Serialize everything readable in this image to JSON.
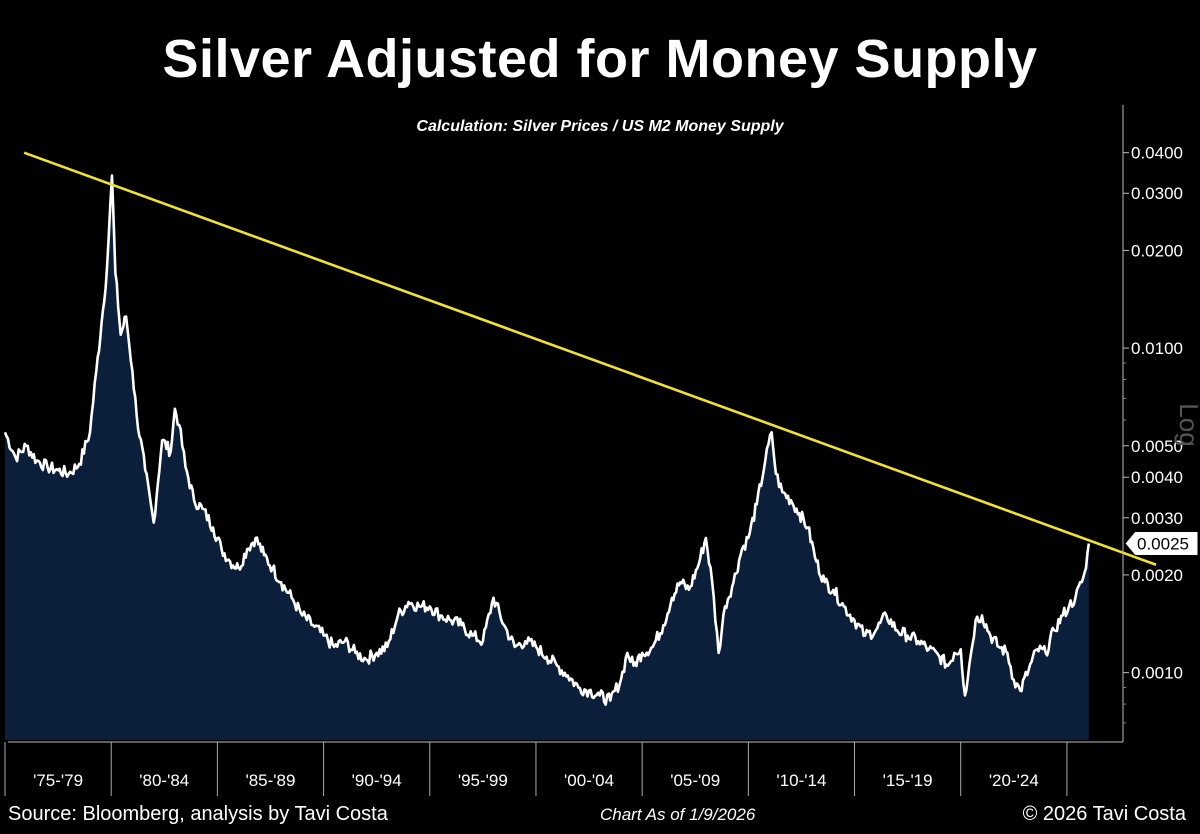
{
  "header": {
    "title": "Silver Adjusted for Money Supply",
    "subtitle": "Calculation: Silver Prices / US M2 Money Supply"
  },
  "footer": {
    "source": "Source: Bloomberg, analysis by Tavi Costa",
    "as_of": "Chart As of 1/9/2026",
    "copyright": "© 2026 Tavi Costa"
  },
  "colors": {
    "background": "#000000",
    "area_fill": "#0b1e3a",
    "series_line": "#ffffff",
    "trendline": "#f2e22a"
  },
  "chart_data": {
    "type": "area",
    "title": "Silver Adjusted for Money Supply",
    "subtitle": "Calculation: Silver Prices / US M2 Money Supply",
    "scale": "log",
    "scale_label": "Log",
    "xlabel": "",
    "ylabel": "",
    "xlim": [
      1975.0,
      2027.5
    ],
    "ylim": [
      0.00062,
      0.046
    ],
    "y_ticks": [
      0.001,
      0.002,
      0.003,
      0.004,
      0.005,
      0.01,
      0.02,
      0.03,
      0.04
    ],
    "y_tick_labels": [
      "0.0010",
      "0.0020",
      "0.0030",
      "0.0040",
      "0.0050",
      "0.0100",
      "0.0200",
      "0.0300",
      "0.0400"
    ],
    "x_tick_labels": [
      "'75-'79",
      "'80-'84",
      "'85-'89",
      "'90-'94",
      "'95-'99",
      "'00-'04",
      "'05-'09",
      "'10-'14",
      "'15-'19",
      "'20-'24"
    ],
    "x_period_starts": [
      1975,
      1980,
      1985,
      1990,
      1995,
      2000,
      2005,
      2010,
      2015,
      2020,
      2025
    ],
    "current_value": 0.0025,
    "current_value_label": "0.0025",
    "series": [
      {
        "name": "Silver / US M2",
        "x": [
          1975.0,
          1975.5,
          1976.0,
          1976.5,
          1977.0,
          1977.5,
          1978.0,
          1978.5,
          1979.0,
          1979.3,
          1979.55,
          1979.8,
          1980.04,
          1980.2,
          1980.45,
          1980.7,
          1981.0,
          1981.2,
          1981.6,
          1982.0,
          1982.4,
          1982.8,
          1983.0,
          1983.2,
          1983.5,
          1983.9,
          1984.3,
          1984.8,
          1985.2,
          1985.6,
          1986.0,
          1986.4,
          1986.8,
          1987.2,
          1987.6,
          1988.0,
          1988.5,
          1989.0,
          1989.5,
          1990.0,
          1990.5,
          1991.0,
          1991.5,
          1992.0,
          1992.5,
          1993.0,
          1993.5,
          1994.0,
          1994.5,
          1995.0,
          1995.5,
          1996.0,
          1996.5,
          1997.0,
          1997.5,
          1998.0,
          1998.5,
          1999.0,
          1999.5,
          2000.0,
          2000.5,
          2001.0,
          2001.5,
          2002.0,
          2002.5,
          2003.0,
          2003.5,
          2004.0,
          2004.3,
          2004.6,
          2005.0,
          2005.5,
          2006.0,
          2006.4,
          2006.8,
          2007.2,
          2007.6,
          2008.0,
          2008.3,
          2008.6,
          2008.9,
          2009.3,
          2009.7,
          2010.0,
          2010.4,
          2010.8,
          2011.1,
          2011.3,
          2011.6,
          2012.0,
          2012.4,
          2012.8,
          2013.2,
          2013.6,
          2014.0,
          2014.5,
          2015.0,
          2015.5,
          2016.0,
          2016.5,
          2017.0,
          2017.5,
          2018.0,
          2018.5,
          2019.0,
          2019.4,
          2019.7,
          2020.0,
          2020.2,
          2020.4,
          2020.7,
          2021.0,
          2021.4,
          2021.8,
          2022.2,
          2022.5,
          2022.8,
          2023.2,
          2023.6,
          2024.0,
          2024.4,
          2024.8,
          2025.1,
          2025.4,
          2025.7,
          2025.9,
          2026.03
        ],
        "values": [
          0.0055,
          0.0046,
          0.005,
          0.0045,
          0.0043,
          0.0042,
          0.0041,
          0.0044,
          0.0055,
          0.0085,
          0.012,
          0.0175,
          0.034,
          0.017,
          0.011,
          0.0125,
          0.0085,
          0.0062,
          0.0042,
          0.0029,
          0.0052,
          0.0048,
          0.0065,
          0.0058,
          0.0043,
          0.0034,
          0.0032,
          0.0028,
          0.0024,
          0.0022,
          0.0021,
          0.0024,
          0.0026,
          0.0023,
          0.0021,
          0.0019,
          0.0017,
          0.0015,
          0.0014,
          0.0013,
          0.0012,
          0.00125,
          0.00115,
          0.0011,
          0.00115,
          0.0012,
          0.0015,
          0.00165,
          0.0016,
          0.0016,
          0.0015,
          0.00145,
          0.0014,
          0.0013,
          0.00125,
          0.0017,
          0.0014,
          0.0012,
          0.00125,
          0.0012,
          0.00112,
          0.00105,
          0.00098,
          0.0009,
          0.00088,
          0.00085,
          0.00082,
          0.00095,
          0.00115,
          0.00105,
          0.00115,
          0.0012,
          0.0014,
          0.0017,
          0.0019,
          0.0018,
          0.0021,
          0.0026,
          0.0019,
          0.00115,
          0.0016,
          0.0019,
          0.0024,
          0.0026,
          0.0033,
          0.0045,
          0.0055,
          0.0041,
          0.0036,
          0.0034,
          0.0031,
          0.0028,
          0.0022,
          0.0019,
          0.0018,
          0.0016,
          0.00145,
          0.0013,
          0.00135,
          0.0015,
          0.00135,
          0.0013,
          0.00125,
          0.00118,
          0.00112,
          0.00105,
          0.00115,
          0.00118,
          0.00085,
          0.00105,
          0.00145,
          0.0015,
          0.0013,
          0.0012,
          0.00115,
          0.00095,
          0.00088,
          0.00102,
          0.00118,
          0.00115,
          0.00135,
          0.0015,
          0.0016,
          0.0017,
          0.0019,
          0.0021,
          0.0025
        ]
      },
      {
        "name": "Trendline",
        "x": [
          1975.9,
          2029.2
        ],
        "values": [
          0.04,
          0.00215
        ]
      }
    ]
  }
}
